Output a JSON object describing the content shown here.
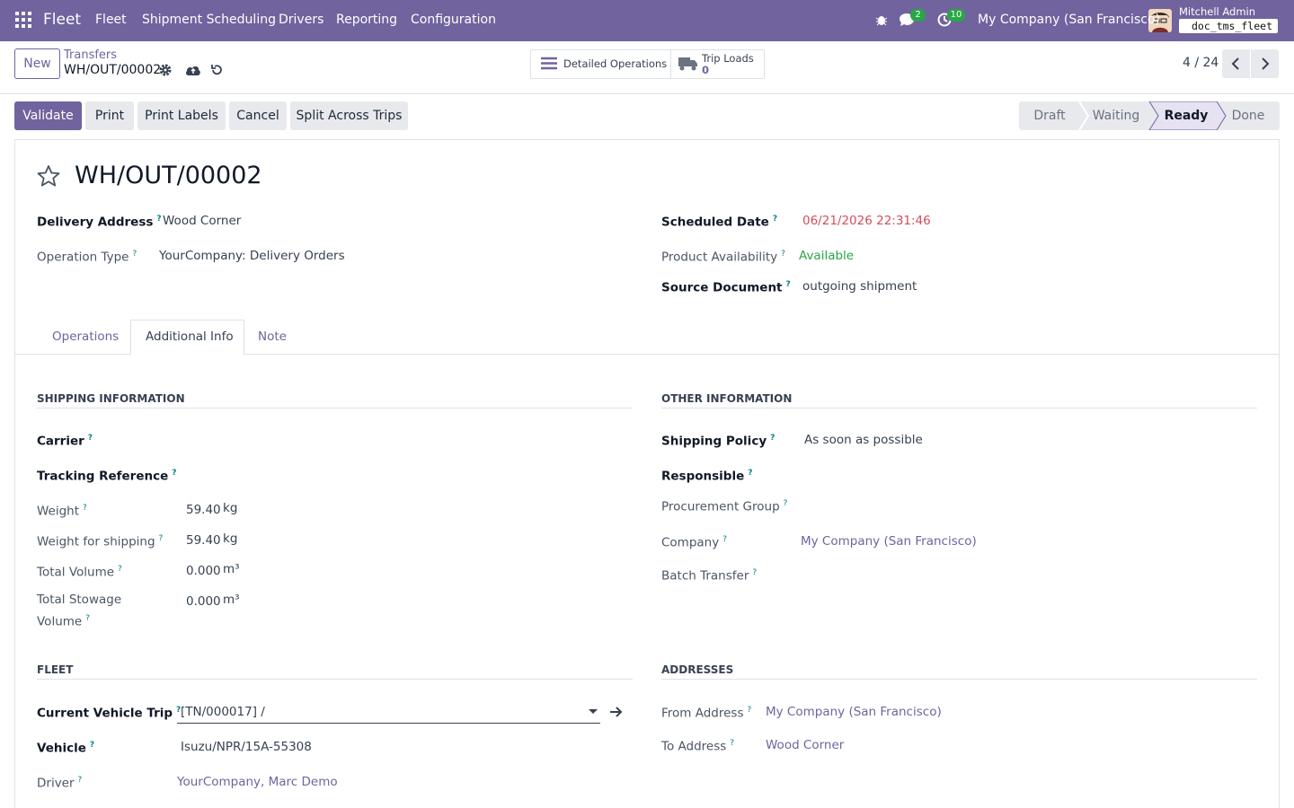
{
  "navbar": {
    "app": "Fleet",
    "menu": [
      "Fleet",
      "Shipment Scheduling",
      "Drivers",
      "Reporting",
      "Configuration"
    ],
    "messages_count": 2,
    "activities_count": 10,
    "company": "My Company (San Francisco)",
    "user": "Mitchell Admin",
    "database": "doc_tms_fleet"
  },
  "control_panel": {
    "new_button": "New",
    "breadcrumb_parent": "Transfers",
    "breadcrumb_current": "WH/OUT/00002",
    "smart_buttons": [
      {
        "label": "Detailed Operations"
      },
      {
        "label": "Trip Loads",
        "value": 0
      }
    ],
    "pager": "4 / 24"
  },
  "actions": [
    "Validate",
    "Print",
    "Print Labels",
    "Cancel",
    "Split Across Trips"
  ],
  "statusbar": {
    "stages": [
      "Draft",
      "Waiting",
      "Ready",
      "Done"
    ],
    "active": 2
  },
  "form": {
    "title": "WH/OUT/00002",
    "help_marker": "?",
    "main_left": [
      {
        "label": "Delivery Address",
        "value": "Wood Corner"
      },
      {
        "label": "Operation Type",
        "value": "YourCompany: Delivery Orders"
      }
    ],
    "main_right": [
      {
        "label": "Scheduled Date",
        "value": "06/21/2026 22:31:46"
      },
      {
        "label": "Product Availability",
        "value": "Available"
      },
      {
        "label": "Source Document",
        "value": "outgoing shipment"
      }
    ],
    "tabs": [
      "Operations",
      "Additional Info",
      "Note"
    ],
    "active_tab": 1,
    "shipping": {
      "title": "SHIPPING INFORMATION",
      "fields": [
        {
          "label": "Carrier"
        },
        {
          "label": "Tracking Reference"
        },
        {
          "label": "Weight",
          "value": "59.40",
          "unit": "kg"
        },
        {
          "label": "Weight for shipping",
          "value": "59.40",
          "unit": "kg"
        },
        {
          "label": "Total Volume",
          "value": "0.000",
          "unit": "m³"
        },
        {
          "label": "Total Stowage Volume",
          "value": "0.000",
          "unit": "m³"
        }
      ]
    },
    "other": {
      "title": "OTHER INFORMATION",
      "fields": [
        {
          "label": "Shipping Policy",
          "value": "As soon as possible"
        },
        {
          "label": "Responsible"
        },
        {
          "label": "Procurement Group"
        },
        {
          "label": "Company",
          "value": "My Company (San Francisco)"
        },
        {
          "label": "Batch Transfer"
        }
      ]
    },
    "fleet": {
      "title": "FLEET",
      "fields": [
        {
          "label": "Current Vehicle Trip",
          "value": "[TN/000017] /"
        },
        {
          "label": "Vehicle",
          "value": "Isuzu/NPR/15A-55308"
        },
        {
          "label": "Driver",
          "value": "YourCompany, Marc Demo"
        }
      ]
    },
    "addresses": {
      "title": "ADDRESSES",
      "fields": [
        {
          "label": "From Address",
          "value": "My Company (San Francisco)"
        },
        {
          "label": "To Address",
          "value": "Wood Corner"
        }
      ]
    }
  }
}
